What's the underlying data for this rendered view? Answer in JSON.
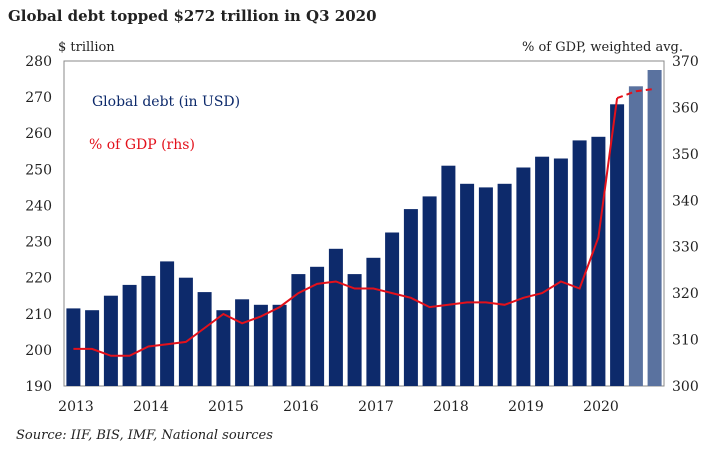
{
  "chart_data": {
    "type": "bar",
    "title": "Global debt topped $272 trillion in Q3 2020",
    "y_left_label": "$ trillion",
    "y_right_label": "% of GDP, weighted avg.",
    "source": "Source: IIF, BIS, IMF, National sources",
    "ylim_left": [
      190,
      280
    ],
    "ylim_right": [
      300,
      370
    ],
    "y_left_ticks": [
      "190",
      "200",
      "210",
      "220",
      "230",
      "240",
      "250",
      "260",
      "270",
      "280"
    ],
    "y_right_ticks": [
      "300",
      "310",
      "320",
      "330",
      "340",
      "350",
      "360",
      "370"
    ],
    "x_ticks": [
      "2013",
      "2014",
      "2015",
      "2016",
      "2017",
      "2018",
      "2019",
      "2020"
    ],
    "legend": {
      "debt": "Global debt (in USD)",
      "gdp": "% of GDP (rhs)"
    },
    "colors": {
      "bar": "#0d2a6b",
      "bar_estimate": "#5a729f",
      "line": "#e3111b",
      "text": "#222222"
    },
    "categories": [
      "Q1 2013",
      "Q2 2013",
      "Q3 2013",
      "Q4 2013",
      "Q1 2014",
      "Q2 2014",
      "Q3 2014",
      "Q4 2014",
      "Q1 2015",
      "Q2 2015",
      "Q3 2015",
      "Q4 2015",
      "Q1 2016",
      "Q2 2016",
      "Q3 2016",
      "Q4 2016",
      "Q1 2017",
      "Q2 2017",
      "Q3 2017",
      "Q4 2017",
      "Q1 2018",
      "Q2 2018",
      "Q3 2018",
      "Q4 2018",
      "Q1 2019",
      "Q2 2019",
      "Q3 2019",
      "Q4 2019",
      "Q1 2020",
      "Q2 2020",
      "Q3 2020",
      "Q4 2020"
    ],
    "series": [
      {
        "name": "Global debt (in USD)",
        "axis": "left",
        "values": [
          211.5,
          211,
          215,
          218,
          220.5,
          224.5,
          220,
          216,
          211,
          214,
          212.5,
          212.5,
          221,
          223,
          228,
          221,
          225.5,
          232.5,
          239,
          242.5,
          251,
          246,
          245,
          246,
          250.5,
          253.5,
          253,
          258,
          259,
          268,
          273,
          277.5
        ],
        "estimate_from_index": 30
      },
      {
        "name": "% of GDP (rhs)",
        "axis": "right",
        "values": [
          308,
          308,
          306.5,
          306.5,
          308.5,
          309,
          309.5,
          312.5,
          315.5,
          313.5,
          315,
          317,
          320,
          322,
          322.5,
          321,
          321,
          320,
          319,
          317,
          317.5,
          318,
          318,
          317.5,
          319,
          320,
          322.5,
          321,
          332,
          362,
          363.5,
          364
        ]
      }
    ]
  }
}
